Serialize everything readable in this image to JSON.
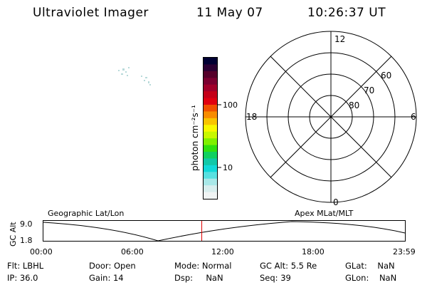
{
  "header": {
    "instrument": "Ultraviolet Imager",
    "date": "11 May 07",
    "time": "10:26:37 UT"
  },
  "colorbar": {
    "unit_label": "photon cm⁻²s⁻¹",
    "tick_labels": [
      "100",
      "10"
    ],
    "colors": [
      "#000033",
      "#2a0033",
      "#55002a",
      "#7a0030",
      "#a0002a",
      "#c40018",
      "#e00010",
      "#f05000",
      "#f88c00",
      "#f8c400",
      "#f8f800",
      "#c8f800",
      "#80f000",
      "#30e010",
      "#10d060",
      "#10c8a8",
      "#10d8d8",
      "#58e0e0",
      "#a8e8e8",
      "#d8eeee",
      "#f0f4f4"
    ]
  },
  "polar": {
    "mlt_labels": {
      "top": "12",
      "right": "6",
      "bottom": "0",
      "left": "18"
    },
    "lat_labels": [
      "60",
      "70",
      "80"
    ]
  },
  "track": {
    "axis_label": "GC Alt",
    "y_ticks": [
      "9.0",
      "1.8"
    ],
    "left_title": "Geographic Lat/Lon",
    "right_title": "Apex MLat/MLT",
    "x_ticks": [
      "00:00",
      "06:00",
      "12:00",
      "18:00",
      "23:59"
    ]
  },
  "info": {
    "rows": [
      [
        {
          "label": "Flt:",
          "value": "LBHL"
        },
        {
          "label": "Door:",
          "value": "Open"
        },
        {
          "label": "Mode:",
          "value": "Normal"
        },
        {
          "label": "GC Alt:",
          "value": "5.5 Re"
        },
        {
          "label": "GLat:",
          "value": "NaN"
        }
      ],
      [
        {
          "label": "IP:",
          "value": "36.0"
        },
        {
          "label": "Gain:",
          "value": "14"
        },
        {
          "label": "Dsp:",
          "value": "NaN"
        },
        {
          "label": "Seq:",
          "value": "39"
        },
        {
          "label": "GLon:",
          "value": "NaN"
        }
      ]
    ]
  }
}
